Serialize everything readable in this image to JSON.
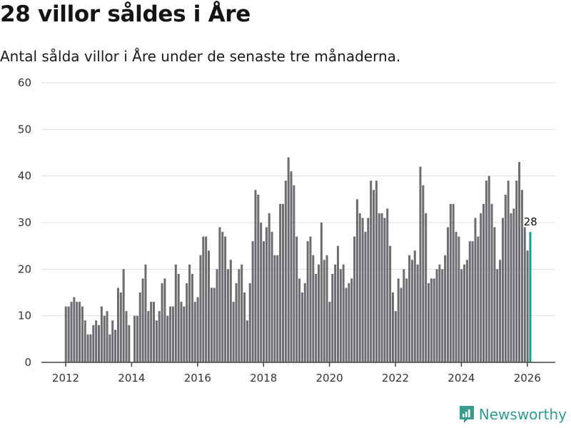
{
  "header": {
    "title": "28 villor såldes i Åre",
    "subtitle": "Antal sålda villor i Åre under de senaste tre månaderna."
  },
  "brand": {
    "name": "Newsworthy",
    "icon": "bar-chart-speech-bubble-icon",
    "color": "#2a9d8f"
  },
  "chart_data": {
    "type": "bar",
    "title": "28 villor såldes i Åre",
    "subtitle": "Antal sålda villor i Åre under de senaste tre månaderna.",
    "xlabel": "",
    "ylabel": "",
    "ylim": [
      0,
      60
    ],
    "yticks": [
      0,
      10,
      20,
      30,
      40,
      50,
      60
    ],
    "xticks": [
      "2012",
      "2014",
      "2016",
      "2018",
      "2020",
      "2022",
      "2024",
      "2026"
    ],
    "grid": true,
    "bar_color": "#6d6c71",
    "highlight_color": "#16a085",
    "start": "2012-01",
    "frequency": "monthly",
    "values": [
      12,
      12,
      13,
      14,
      13,
      13,
      12,
      9,
      6,
      6,
      8,
      9,
      8,
      12,
      10,
      11,
      6,
      9,
      7,
      16,
      15,
      20,
      11,
      8,
      0,
      10,
      10,
      15,
      18,
      21,
      11,
      13,
      13,
      9,
      11,
      17,
      18,
      10,
      12,
      12,
      21,
      19,
      13,
      12,
      17,
      21,
      19,
      13,
      14,
      23,
      27,
      27,
      24,
      16,
      16,
      20,
      29,
      28,
      27,
      20,
      22,
      13,
      17,
      20,
      21,
      15,
      9,
      17,
      26,
      37,
      36,
      30,
      26,
      29,
      32,
      28,
      23,
      23,
      34,
      34,
      39,
      44,
      41,
      38,
      27,
      18,
      15,
      17,
      26,
      27,
      23,
      19,
      21,
      30,
      22,
      23,
      13,
      19,
      21,
      25,
      20,
      21,
      16,
      17,
      18,
      27,
      35,
      32,
      31,
      28,
      31,
      39,
      37,
      39,
      32,
      32,
      31,
      33,
      25,
      15,
      11,
      18,
      16,
      20,
      18,
      23,
      22,
      24,
      21,
      42,
      38,
      32,
      17,
      18,
      18,
      20,
      21,
      20,
      23,
      29,
      34,
      34,
      28,
      27,
      20,
      21,
      22,
      26,
      26,
      31,
      27,
      32,
      34,
      39,
      40,
      34,
      29,
      20,
      22,
      31,
      36,
      39,
      32,
      33,
      39,
      43,
      37,
      29,
      24,
      28
    ],
    "highlight_index": 169,
    "annotations": [
      {
        "label": "28",
        "target": "last bar (2026-02)"
      }
    ]
  }
}
